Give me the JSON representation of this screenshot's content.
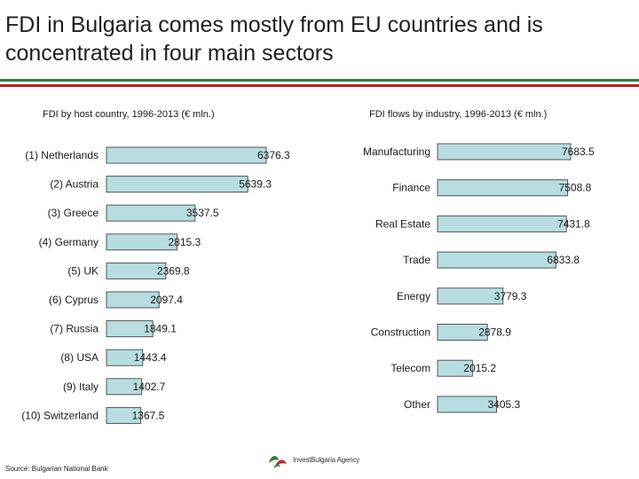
{
  "title": "FDI in Bulgaria comes mostly from EU countries and is\nconcentrated in four main sectors",
  "colors": {
    "bar_fill": "#b7dde0",
    "bar_stroke": "#555555",
    "stripe_green": "#2e7d3c",
    "stripe_red": "#b22222",
    "logo_green": "#2e7d3c",
    "logo_red": "#c0272d"
  },
  "source": "Source: Bulgarian National Bank",
  "logo": {
    "text": "InvestBulgaria Agency",
    "icon": "leaf-logo-icon"
  },
  "chart_data": [
    {
      "type": "bar",
      "orientation": "horizontal",
      "title": "FDI by host country, 1996-2013 (€ mln.)",
      "categories": [
        "(1) Netherlands",
        "(2) Austria",
        "(3) Greece",
        "(4) Germany",
        "(5) UK",
        "(6) Cyprus",
        "(7) Russia",
        "(8) USA",
        "(9) Italy",
        "(10) Switzerland"
      ],
      "values": [
        6376.3,
        5639.3,
        3537.5,
        2815.3,
        2369.8,
        2097.4,
        1849.1,
        1443.4,
        1402.7,
        1367.5
      ],
      "labels": [
        "6376.3",
        "5639.3",
        "3537.5",
        "2815.3",
        "2369.8",
        "2097.4",
        "1849.1",
        "1443.4",
        "1402.7",
        "1367.5"
      ],
      "grid": false,
      "axes_visible": false
    },
    {
      "type": "bar",
      "orientation": "horizontal",
      "title": "FDI flows by industry, 1996-2013 (€ mln.)",
      "categories": [
        "Manufacturing",
        "Finance",
        "Real Estate",
        "Trade",
        "Energy",
        "Construction",
        "Telecom",
        "Other"
      ],
      "values": [
        7683.5,
        7508.8,
        7431.8,
        6833.8,
        3779.3,
        2878.9,
        2015.2,
        3405.3
      ],
      "labels": [
        "7683.5",
        "7508.8",
        "7431.8",
        "6833.8",
        "3779.3",
        "2878.9",
        "2015.2",
        "3405.3"
      ],
      "grid": false,
      "axes_visible": false
    }
  ]
}
